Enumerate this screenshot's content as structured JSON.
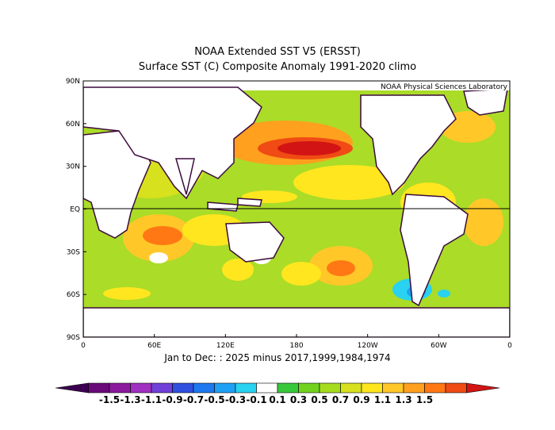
{
  "title": "NOAA Extended SST V5 (ERSST)",
  "subtitle": "Surface SST (C) Composite Anomaly 1991-2020 climo",
  "credit": "NOAA Physical Sciences Laboratory",
  "period_label": "Jan to Dec: : 2025 minus 2017,1999,1984,1974",
  "lat_labels": [
    "90N",
    "60N",
    "30N",
    "EQ",
    "30S",
    "60S",
    "90S"
  ],
  "lon_labels": [
    "0",
    "60E",
    "120E",
    "180",
    "120W",
    "60W",
    "0"
  ],
  "colorbar": {
    "tick_labels": [
      "-1.5",
      "-1.3",
      "-1.1",
      "-0.9",
      "-0.7",
      "-0.5",
      "-0.3",
      "-0.1",
      "0.1",
      "0.3",
      "0.5",
      "0.7",
      "0.9",
      "1.1",
      "1.3",
      "1.5"
    ],
    "colors": [
      "#3c0050",
      "#6a0a78",
      "#8b1a9c",
      "#a030c0",
      "#7040d8",
      "#3050e0",
      "#1e78f0",
      "#1ea0f5",
      "#28d2f0",
      "#ffffff",
      "#39c83c",
      "#73d21e",
      "#a5dc1e",
      "#d7e11e",
      "#ffe61e",
      "#ffc828",
      "#ffa01e",
      "#ff7814",
      "#f04b14",
      "#d21414"
    ]
  },
  "legend_colors": {
    "land": "#ffffff",
    "coast": "#3c0a3c",
    "ocean_base": "#aadc28"
  }
}
